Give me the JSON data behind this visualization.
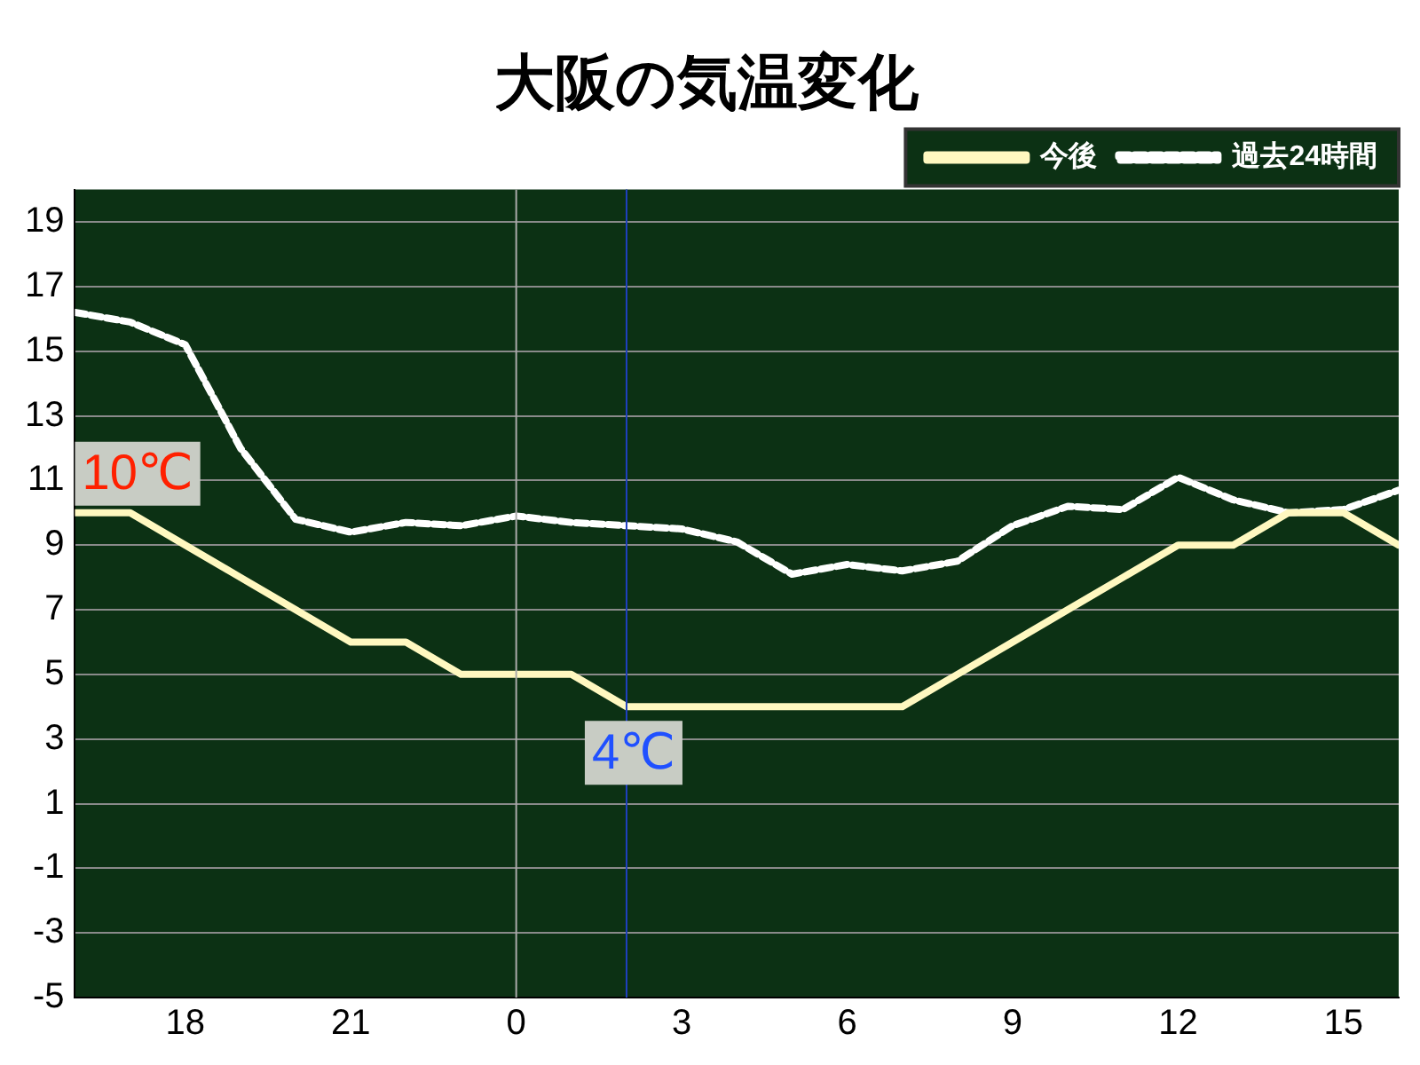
{
  "chart_data": {
    "type": "line",
    "title": "大阪の気温変化",
    "x": [
      "--01-01T16:00",
      "--01-01T17:00",
      "--01-01T18:00",
      "--01-01T19:00",
      "--01-01T20:00",
      "--01-01T21:00",
      "--01-01T22:00",
      "--01-01T23:00",
      "--01-02T00:00",
      "--01-02T01:00",
      "--01-02T02:00",
      "--01-02T03:00",
      "--01-02T04:00",
      "--01-02T05:00",
      "--01-02T06:00",
      "--01-02T07:00",
      "--01-02T08:00",
      "--01-02T09:00",
      "--01-02T10:00",
      "--01-02T11:00",
      "--01-02T12:00",
      "--01-02T13:00",
      "--01-02T14:00",
      "--01-02T15:00",
      "--01-02T16:00"
    ],
    "series": [
      {
        "name": "今後",
        "color": "#fff8c0",
        "line_style": "solid",
        "values": [
          10,
          10,
          9,
          8,
          7,
          6,
          6,
          5,
          5,
          5,
          4,
          4,
          4,
          4,
          4,
          4,
          5,
          6,
          7,
          8,
          9,
          9,
          10,
          10,
          9
        ]
      },
      {
        "name": "過去24時間",
        "color": "#ffffff",
        "line_style": "dashed",
        "values": [
          16.2,
          15.9,
          15.2,
          12,
          9.8,
          9.4,
          9.7,
          9.6,
          9.9,
          9.7,
          9.6,
          9.5,
          9.1,
          8.1,
          8.4,
          8.2,
          8.5,
          9.6,
          10.2,
          10.1,
          11.1,
          10.4,
          10,
          10.1,
          10.7
        ]
      }
    ],
    "xlim": [
      "--01-01T16:00",
      "--01-02T16:00"
    ],
    "xticks": [
      {
        "value": "--01-01T18:00",
        "label": "18"
      },
      {
        "value": "--01-01T21:00",
        "label": "21"
      },
      {
        "value": "--01-02T00:00",
        "label": "0"
      },
      {
        "value": "--01-02T03:00",
        "label": "3"
      },
      {
        "value": "--01-02T06:00",
        "label": "6"
      },
      {
        "value": "--01-02T09:00",
        "label": "9"
      },
      {
        "value": "--01-02T12:00",
        "label": "12"
      },
      {
        "value": "--01-02T15:00",
        "label": "15"
      }
    ],
    "ylim": [
      -5,
      20
    ],
    "yticks": [
      -5,
      -3,
      -1,
      1,
      3,
      5,
      7,
      9,
      11,
      13,
      15,
      17,
      19
    ],
    "grid": "y",
    "legend": "top right",
    "marker": "none",
    "ref_lines": [
      {
        "axis": "x",
        "value": "--01-02T00:00",
        "color": "#aaaaaa"
      },
      {
        "axis": "x",
        "value": "--01-02T02:00",
        "color": "#2040c0"
      }
    ],
    "annotations": [
      {
        "text": "10℃",
        "x": "--01-01T16:00",
        "y": 10
      },
      {
        "text": "4℃",
        "x": "--01-02T02:00",
        "y": 4
      }
    ]
  }
}
